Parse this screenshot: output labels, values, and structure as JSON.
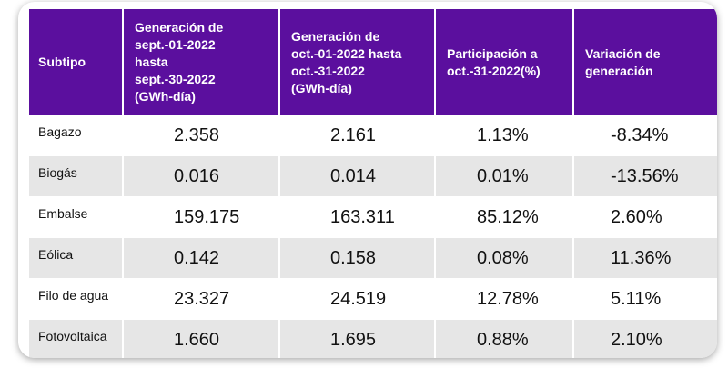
{
  "chart_data": {
    "type": "table",
    "columns": [
      "Subtipo",
      [
        "Generación de",
        "sept.-01-2022",
        "hasta",
        "sept.-30-2022",
        "(GWh-día)"
      ],
      [
        "Generación de",
        "oct.-01-2022 hasta",
        "oct.-31-2022",
        "(GWh-día)"
      ],
      [
        "Participación a",
        "oct.-31-2022(%)"
      ],
      [
        "Variación de",
        "generación"
      ]
    ],
    "rows": [
      {
        "subtipo": "Bagazo",
        "sept": "2.358",
        "oct": "2.161",
        "participacion": "1.13%",
        "variacion": "-8.34%"
      },
      {
        "subtipo": "Biogás",
        "sept": "0.016",
        "oct": "0.014",
        "participacion": "0.01%",
        "variacion": "-13.56%"
      },
      {
        "subtipo": "Embalse",
        "sept": "159.175",
        "oct": "163.311",
        "participacion": "85.12%",
        "variacion": "2.60%"
      },
      {
        "subtipo": "Eólica",
        "sept": "0.142",
        "oct": "0.158",
        "participacion": "0.08%",
        "variacion": "11.36%"
      },
      {
        "subtipo": "Filo de agua",
        "sept": "23.327",
        "oct": "24.519",
        "participacion": "12.78%",
        "variacion": "5.11%"
      },
      {
        "subtipo": "Fotovoltaica",
        "sept": "1.660",
        "oct": "1.695",
        "participacion": "0.88%",
        "variacion": "2.10%"
      }
    ]
  },
  "colors": {
    "header_bg": "#5b0f9e",
    "header_text": "#ffffff",
    "row_alt_bg": "#e6e6e6",
    "row_bg": "#ffffff"
  }
}
